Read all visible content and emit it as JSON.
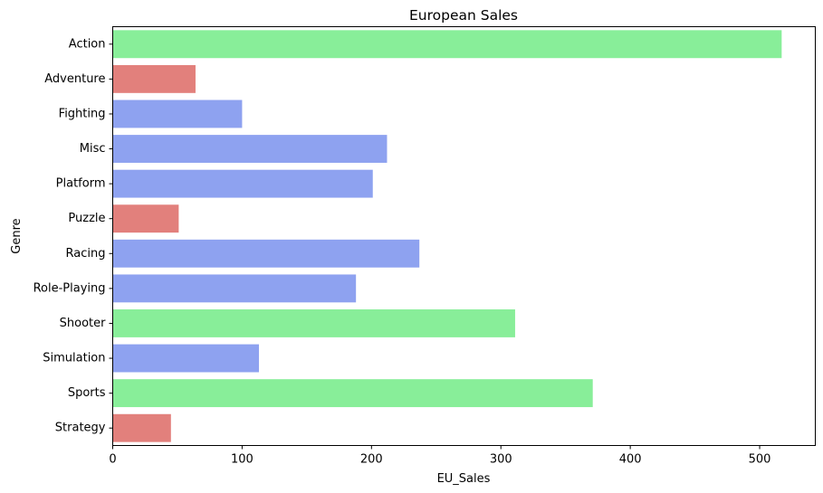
{
  "chart_data": {
    "type": "bar",
    "orientation": "horizontal",
    "title": "European Sales",
    "xlabel": "EU_Sales",
    "ylabel": "Genre",
    "categories": [
      "Action",
      "Adventure",
      "Fighting",
      "Misc",
      "Platform",
      "Puzzle",
      "Racing",
      "Role-Playing",
      "Shooter",
      "Simulation",
      "Sports",
      "Strategy"
    ],
    "values": [
      517,
      64,
      100,
      212,
      201,
      51,
      237,
      188,
      311,
      113,
      371,
      45
    ],
    "bar_colors": [
      "#88ee99",
      "#e2807c",
      "#8ea2f0",
      "#8ea2f0",
      "#8ea2f0",
      "#e2807c",
      "#8ea2f0",
      "#8ea2f0",
      "#88ee99",
      "#8ea2f0",
      "#88ee99",
      "#e2807c"
    ],
    "xlim": [
      0,
      543
    ],
    "xticks": [
      0,
      100,
      200,
      300,
      400,
      500
    ],
    "grid": false,
    "legend": "none"
  }
}
